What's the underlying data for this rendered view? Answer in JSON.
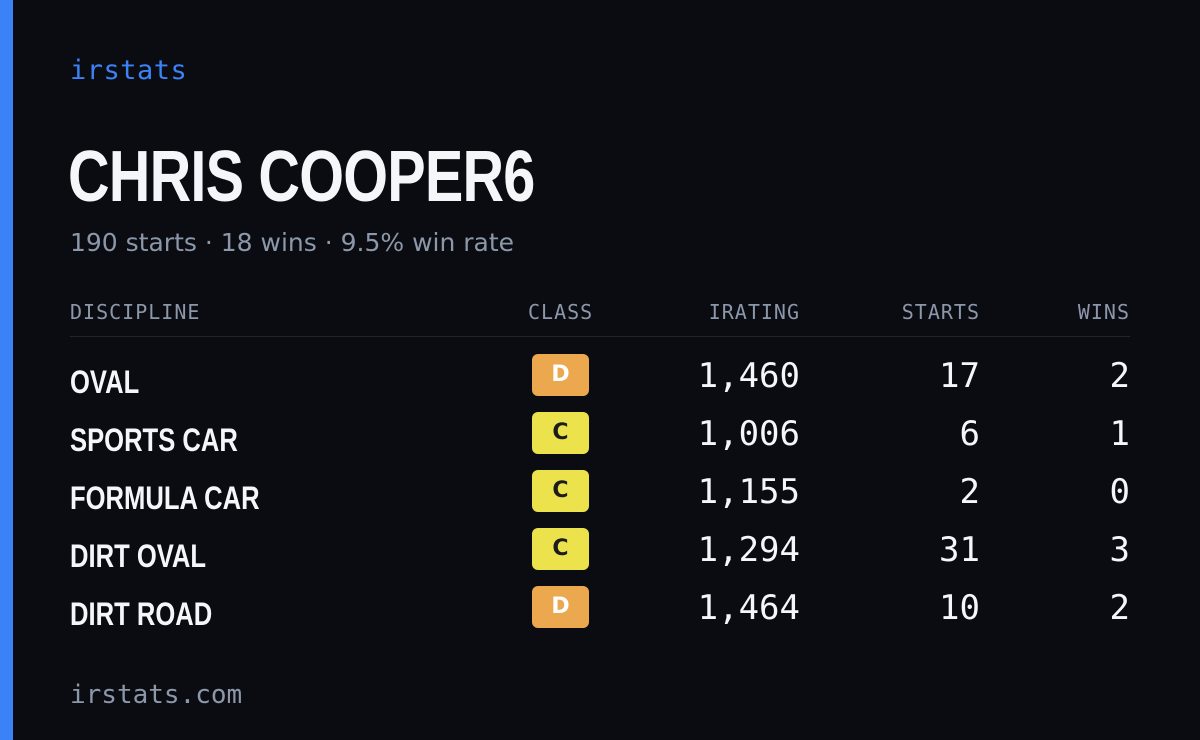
{
  "brand": "irstats",
  "driver_name": "CHRIS COOPER6",
  "summary": "190 starts · 18 wins · 9.5% win rate",
  "table": {
    "headers": {
      "discipline": "DISCIPLINE",
      "class": "CLASS",
      "irating": "IRATING",
      "starts": "STARTS",
      "wins": "WINS"
    },
    "rows": [
      {
        "discipline": "OVAL",
        "class": "D",
        "irating": "1,460",
        "starts": "17",
        "wins": "2"
      },
      {
        "discipline": "SPORTS CAR",
        "class": "C",
        "irating": "1,006",
        "starts": "6",
        "wins": "1"
      },
      {
        "discipline": "FORMULA CAR",
        "class": "C",
        "irating": "1,155",
        "starts": "2",
        "wins": "0"
      },
      {
        "discipline": "DIRT OVAL",
        "class": "C",
        "irating": "1,294",
        "starts": "31",
        "wins": "3"
      },
      {
        "discipline": "DIRT ROAD",
        "class": "D",
        "irating": "1,464",
        "starts": "10",
        "wins": "2"
      }
    ]
  },
  "class_colors": {
    "C": "#ece24b",
    "D": "#eba84f"
  },
  "accent_color": "#3b82f6",
  "footer": "irstats.com"
}
